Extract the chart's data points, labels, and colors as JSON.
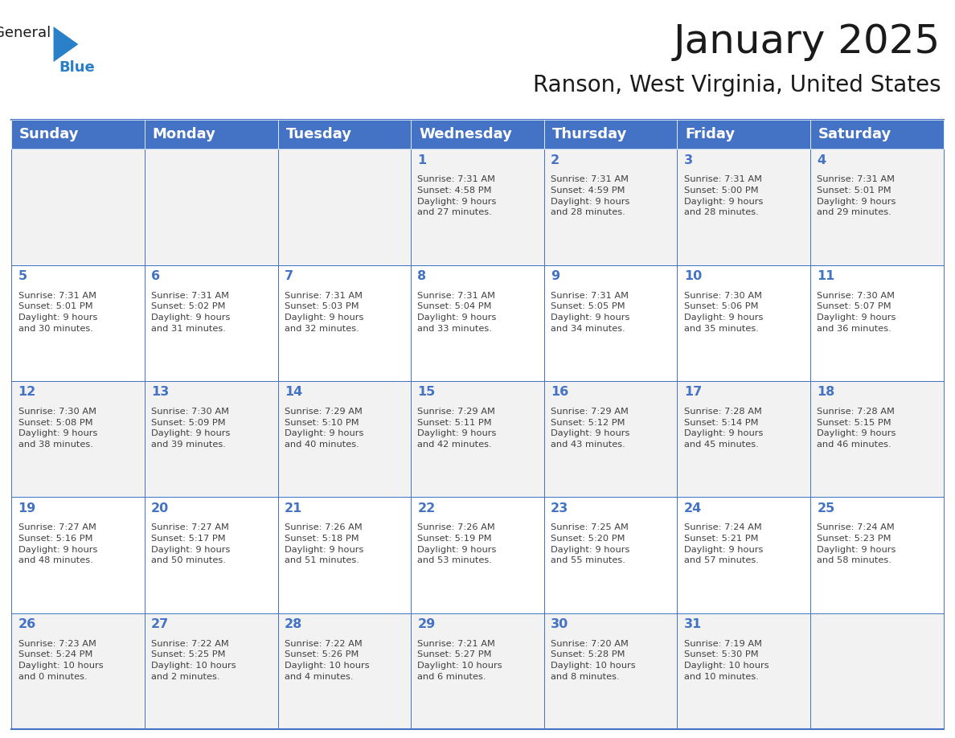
{
  "title": "January 2025",
  "subtitle": "Ranson, West Virginia, United States",
  "header_bg": "#4472C4",
  "header_text_color": "#FFFFFF",
  "header_font_size": 13,
  "day_names": [
    "Sunday",
    "Monday",
    "Tuesday",
    "Wednesday",
    "Thursday",
    "Friday",
    "Saturday"
  ],
  "title_font_size": 36,
  "subtitle_font_size": 20,
  "cell_bg_odd": "#F2F2F2",
  "cell_bg_even": "#FFFFFF",
  "border_color": "#4472C4",
  "number_color": "#4472C4",
  "text_color": "#404040",
  "logo_color_black": "#1A1A1A",
  "logo_color_blue": "#2A7FC9",
  "calendar_data": [
    [
      "",
      "",
      "",
      "1\nSunrise: 7:31 AM\nSunset: 4:58 PM\nDaylight: 9 hours\nand 27 minutes.",
      "2\nSunrise: 7:31 AM\nSunset: 4:59 PM\nDaylight: 9 hours\nand 28 minutes.",
      "3\nSunrise: 7:31 AM\nSunset: 5:00 PM\nDaylight: 9 hours\nand 28 minutes.",
      "4\nSunrise: 7:31 AM\nSunset: 5:01 PM\nDaylight: 9 hours\nand 29 minutes."
    ],
    [
      "5\nSunrise: 7:31 AM\nSunset: 5:01 PM\nDaylight: 9 hours\nand 30 minutes.",
      "6\nSunrise: 7:31 AM\nSunset: 5:02 PM\nDaylight: 9 hours\nand 31 minutes.",
      "7\nSunrise: 7:31 AM\nSunset: 5:03 PM\nDaylight: 9 hours\nand 32 minutes.",
      "8\nSunrise: 7:31 AM\nSunset: 5:04 PM\nDaylight: 9 hours\nand 33 minutes.",
      "9\nSunrise: 7:31 AM\nSunset: 5:05 PM\nDaylight: 9 hours\nand 34 minutes.",
      "10\nSunrise: 7:30 AM\nSunset: 5:06 PM\nDaylight: 9 hours\nand 35 minutes.",
      "11\nSunrise: 7:30 AM\nSunset: 5:07 PM\nDaylight: 9 hours\nand 36 minutes."
    ],
    [
      "12\nSunrise: 7:30 AM\nSunset: 5:08 PM\nDaylight: 9 hours\nand 38 minutes.",
      "13\nSunrise: 7:30 AM\nSunset: 5:09 PM\nDaylight: 9 hours\nand 39 minutes.",
      "14\nSunrise: 7:29 AM\nSunset: 5:10 PM\nDaylight: 9 hours\nand 40 minutes.",
      "15\nSunrise: 7:29 AM\nSunset: 5:11 PM\nDaylight: 9 hours\nand 42 minutes.",
      "16\nSunrise: 7:29 AM\nSunset: 5:12 PM\nDaylight: 9 hours\nand 43 minutes.",
      "17\nSunrise: 7:28 AM\nSunset: 5:14 PM\nDaylight: 9 hours\nand 45 minutes.",
      "18\nSunrise: 7:28 AM\nSunset: 5:15 PM\nDaylight: 9 hours\nand 46 minutes."
    ],
    [
      "19\nSunrise: 7:27 AM\nSunset: 5:16 PM\nDaylight: 9 hours\nand 48 minutes.",
      "20\nSunrise: 7:27 AM\nSunset: 5:17 PM\nDaylight: 9 hours\nand 50 minutes.",
      "21\nSunrise: 7:26 AM\nSunset: 5:18 PM\nDaylight: 9 hours\nand 51 minutes.",
      "22\nSunrise: 7:26 AM\nSunset: 5:19 PM\nDaylight: 9 hours\nand 53 minutes.",
      "23\nSunrise: 7:25 AM\nSunset: 5:20 PM\nDaylight: 9 hours\nand 55 minutes.",
      "24\nSunrise: 7:24 AM\nSunset: 5:21 PM\nDaylight: 9 hours\nand 57 minutes.",
      "25\nSunrise: 7:24 AM\nSunset: 5:23 PM\nDaylight: 9 hours\nand 58 minutes."
    ],
    [
      "26\nSunrise: 7:23 AM\nSunset: 5:24 PM\nDaylight: 10 hours\nand 0 minutes.",
      "27\nSunrise: 7:22 AM\nSunset: 5:25 PM\nDaylight: 10 hours\nand 2 minutes.",
      "28\nSunrise: 7:22 AM\nSunset: 5:26 PM\nDaylight: 10 hours\nand 4 minutes.",
      "29\nSunrise: 7:21 AM\nSunset: 5:27 PM\nDaylight: 10 hours\nand 6 minutes.",
      "30\nSunrise: 7:20 AM\nSunset: 5:28 PM\nDaylight: 10 hours\nand 8 minutes.",
      "31\nSunrise: 7:19 AM\nSunset: 5:30 PM\nDaylight: 10 hours\nand 10 minutes.",
      ""
    ]
  ]
}
